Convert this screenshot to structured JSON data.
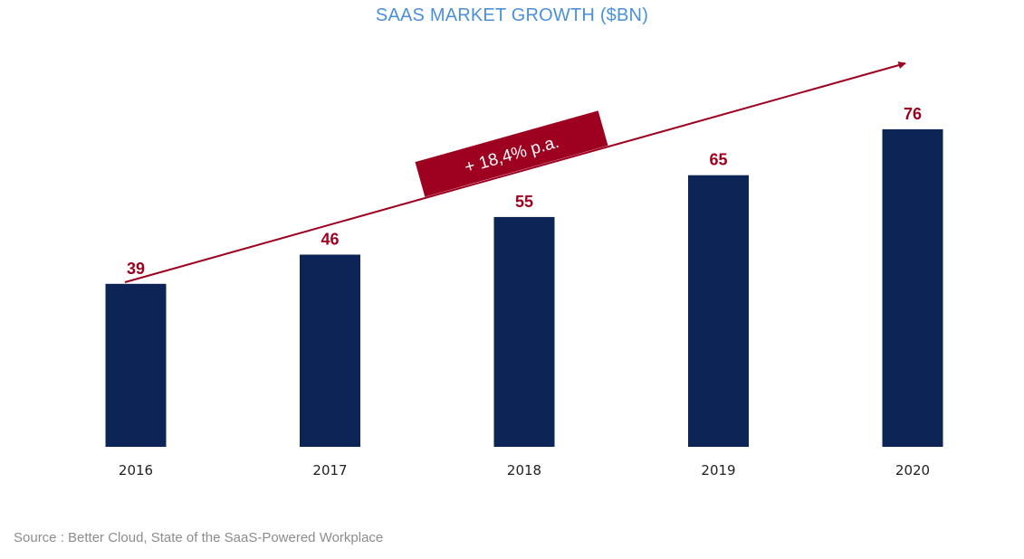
{
  "chart_data": {
    "type": "bar",
    "title": "SAAS MARKET GROWTH ($BN)",
    "categories": [
      "2016",
      "2017",
      "2018",
      "2019",
      "2020"
    ],
    "values": [
      39,
      46,
      55,
      65,
      76
    ],
    "xlabel": "",
    "ylabel": "",
    "ylim": [
      0,
      80
    ],
    "grid": false,
    "bar_color": "#0c2456",
    "data_label_color": "#9e0020",
    "annotation": {
      "text": "+ 18,4% p.a.",
      "color": "#9e0020",
      "text_color": "#ffffff",
      "arrow": true
    }
  },
  "source": "Source : Better Cloud, State of the SaaS-Powered Workplace"
}
